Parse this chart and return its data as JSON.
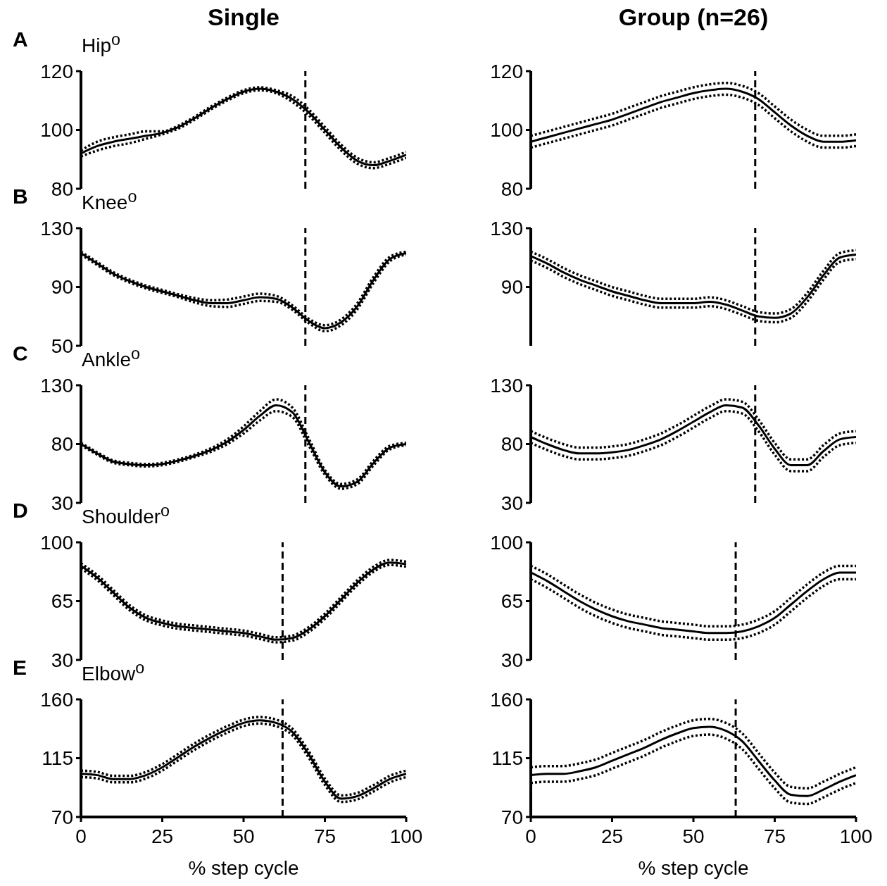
{
  "chart_data": [
    {
      "type": "line",
      "title": "Single",
      "annotations": [
        "A"
      ],
      "ylabel": "Hip$^{o}$",
      "x": [
        0,
        5,
        10,
        15,
        20,
        25,
        30,
        35,
        40,
        45,
        50,
        55,
        60,
        65,
        70,
        75,
        80,
        85,
        90,
        95,
        100
      ],
      "xlim": [
        0,
        100
      ],
      "ylim": [
        80,
        120
      ],
      "yticks": [
        80,
        100,
        120
      ],
      "tick_labels": "y",
      "ref_lines": [
        {
          "axis": "x",
          "value": 69,
          "line_style": "dashed"
        }
      ],
      "series": [
        {
          "color": "#000000",
          "line_style": "solid",
          "values": [
            92,
            94.5,
            96,
            97,
            98,
            99,
            101,
            104,
            107.5,
            110.5,
            113,
            114,
            113,
            110.5,
            106,
            100,
            94,
            89.5,
            88,
            89.5,
            91.5
          ]
        },
        {
          "color": "#000000",
          "line_style": "dotted",
          "values": [
            91,
            93,
            94.5,
            95.5,
            97,
            98.5,
            100.5,
            103.5,
            107,
            110,
            112.5,
            113.5,
            112.5,
            109.5,
            105,
            99,
            93,
            88.5,
            87,
            88.5,
            90.5
          ]
        },
        {
          "color": "#000000",
          "line_style": "dotted",
          "values": [
            93,
            96,
            97.5,
            98.5,
            99.5,
            99.5,
            101.5,
            104.5,
            108,
            111,
            113.5,
            114.5,
            113.5,
            111.5,
            107,
            101,
            95,
            90.5,
            89,
            90.5,
            92.5
          ]
        }
      ]
    },
    {
      "type": "line",
      "title": "Group (n=26)",
      "x": [
        0,
        5,
        10,
        15,
        20,
        25,
        30,
        35,
        40,
        45,
        50,
        55,
        60,
        65,
        70,
        75,
        80,
        85,
        90,
        95,
        100
      ],
      "xlim": [
        0,
        100
      ],
      "ylim": [
        80,
        120
      ],
      "yticks": [
        80,
        100,
        120
      ],
      "tick_labels": "y",
      "ref_lines": [
        {
          "axis": "x",
          "value": 69,
          "line_style": "dashed"
        }
      ],
      "series": [
        {
          "color": "#000000",
          "line_style": "solid",
          "values": [
            96,
            97.5,
            99,
            100.5,
            102,
            103.5,
            105.5,
            107.5,
            109.5,
            111,
            112.5,
            113.5,
            114,
            113,
            110.5,
            106,
            101.5,
            98,
            96,
            96,
            96.5
          ]
        },
        {
          "color": "#000000",
          "line_style": "dotted",
          "values": [
            94,
            95.5,
            97,
            98.5,
            100,
            101.5,
            103.5,
            105.5,
            107.5,
            109,
            110.5,
            111.5,
            112,
            111,
            108.5,
            104,
            99.5,
            96,
            94,
            94,
            94.5
          ]
        },
        {
          "color": "#000000",
          "line_style": "dotted",
          "values": [
            98,
            99.5,
            101,
            102.5,
            104,
            105.5,
            107.5,
            109.5,
            111.5,
            113,
            114.5,
            115.5,
            116,
            115,
            112.5,
            108,
            103.5,
            100,
            98,
            98,
            98.5
          ]
        }
      ]
    },
    {
      "type": "line",
      "annotations": [
        "B"
      ],
      "ylabel": "Knee$^{o}$",
      "x": [
        0,
        5,
        10,
        15,
        20,
        25,
        30,
        35,
        40,
        45,
        50,
        55,
        60,
        65,
        70,
        75,
        80,
        85,
        90,
        95,
        100
      ],
      "xlim": [
        0,
        100
      ],
      "ylim": [
        50,
        130
      ],
      "yticks": [
        50,
        90,
        130
      ],
      "tick_labels": "y",
      "ref_lines": [
        {
          "axis": "x",
          "value": 69,
          "line_style": "dashed"
        }
      ],
      "series": [
        {
          "color": "#000000",
          "line_style": "solid",
          "values": [
            113,
            106,
            99,
            94,
            90,
            87,
            84,
            81,
            79,
            79,
            81,
            83,
            82,
            76,
            67,
            62,
            66,
            77,
            95,
            109,
            113
          ]
        },
        {
          "color": "#000000",
          "line_style": "dotted",
          "values": [
            112,
            105,
            98,
            93,
            89,
            86,
            83,
            79.5,
            77,
            76.5,
            78.5,
            80.5,
            80,
            74.5,
            65.5,
            60,
            64,
            75,
            93,
            107.5,
            112
          ]
        },
        {
          "color": "#000000",
          "line_style": "dotted",
          "values": [
            114,
            107,
            100,
            95,
            91,
            88,
            85,
            82.5,
            81,
            81.5,
            83.5,
            85.5,
            84,
            77.5,
            68.5,
            64,
            68,
            79,
            97,
            110.5,
            114
          ]
        }
      ]
    },
    {
      "type": "line",
      "x": [
        0,
        5,
        10,
        15,
        20,
        25,
        30,
        35,
        40,
        45,
        50,
        55,
        60,
        65,
        70,
        75,
        80,
        85,
        90,
        95,
        100
      ],
      "xlim": [
        0,
        100
      ],
      "ylim": [
        50,
        130
      ],
      "yticks": [
        90,
        130
      ],
      "tick_labels": "y",
      "ref_lines": [
        {
          "axis": "x",
          "value": 69,
          "line_style": "dashed"
        }
      ],
      "series": [
        {
          "color": "#000000",
          "line_style": "solid",
          "values": [
            111,
            106,
            100,
            95,
            91,
            87,
            84,
            81,
            79,
            79,
            79,
            80,
            78,
            74,
            70,
            69,
            72,
            83,
            98,
            110,
            112
          ]
        },
        {
          "color": "#000000",
          "line_style": "dotted",
          "values": [
            108,
            103,
            97,
            92,
            88,
            84,
            81,
            78,
            76,
            76,
            76,
            77,
            75,
            71,
            67,
            66,
            69,
            80,
            95,
            107,
            109
          ]
        },
        {
          "color": "#000000",
          "line_style": "dotted",
          "values": [
            114,
            109,
            103,
            98,
            94,
            90,
            87,
            84,
            82,
            82,
            82,
            83,
            81,
            77,
            73,
            72,
            75,
            86,
            101,
            113,
            115
          ]
        }
      ]
    },
    {
      "type": "line",
      "annotations": [
        "C"
      ],
      "ylabel": "Ankle$^{o}$",
      "x": [
        0,
        5,
        10,
        15,
        20,
        25,
        30,
        35,
        40,
        45,
        50,
        55,
        60,
        65,
        70,
        75,
        80,
        85,
        90,
        95,
        100
      ],
      "xlim": [
        0,
        100
      ],
      "ylim": [
        30,
        130
      ],
      "yticks": [
        30,
        80,
        130
      ],
      "tick_labels": "y",
      "ref_lines": [
        {
          "axis": "x",
          "value": 69,
          "line_style": "dashed"
        }
      ],
      "series": [
        {
          "color": "#000000",
          "line_style": "solid",
          "values": [
            80,
            72,
            65,
            63,
            62,
            63,
            66,
            70,
            75,
            82,
            92,
            104,
            113,
            107,
            82,
            56,
            44,
            48,
            64,
            77,
            80
          ]
        },
        {
          "color": "#000000",
          "line_style": "dotted",
          "values": [
            79,
            71,
            64,
            62,
            61,
            62,
            65,
            69,
            73.5,
            80,
            89,
            100,
            108,
            103,
            79,
            54,
            42,
            46,
            62,
            75.5,
            79
          ]
        },
        {
          "color": "#000000",
          "line_style": "dotted",
          "values": [
            81,
            73,
            66,
            64,
            63,
            64,
            67,
            71,
            76.5,
            84,
            95,
            108,
            118,
            111,
            85,
            58,
            46,
            50,
            66,
            78.5,
            81
          ]
        }
      ]
    },
    {
      "type": "line",
      "x": [
        0,
        5,
        10,
        15,
        20,
        25,
        30,
        35,
        40,
        45,
        50,
        55,
        60,
        65,
        70,
        75,
        80,
        85,
        90,
        95,
        100
      ],
      "xlim": [
        0,
        100
      ],
      "ylim": [
        30,
        130
      ],
      "yticks": [
        30,
        80,
        130
      ],
      "tick_labels": "y",
      "ref_lines": [
        {
          "axis": "x",
          "value": 69,
          "line_style": "dashed"
        }
      ],
      "series": [
        {
          "color": "#000000",
          "line_style": "solid",
          "values": [
            86,
            80,
            75,
            72,
            72,
            73,
            75,
            79,
            84,
            91,
            99,
            107,
            113,
            111,
            96,
            76,
            62,
            62,
            74,
            84,
            86
          ]
        },
        {
          "color": "#000000",
          "line_style": "dotted",
          "values": [
            81,
            75,
            70,
            67,
            67,
            68,
            70,
            74,
            79,
            86,
            94,
            102,
            108,
            106,
            91,
            71,
            57,
            57,
            69,
            79,
            81
          ]
        },
        {
          "color": "#000000",
          "line_style": "dotted",
          "values": [
            91,
            85,
            80,
            77,
            77,
            78,
            80,
            84,
            89,
            96,
            104,
            112,
            118,
            116,
            101,
            81,
            67,
            67,
            79,
            89,
            91
          ]
        }
      ]
    },
    {
      "type": "line",
      "annotations": [
        "D"
      ],
      "ylabel": "Shoulder$^{o}$",
      "x": [
        0,
        5,
        10,
        15,
        20,
        25,
        30,
        35,
        40,
        45,
        50,
        55,
        60,
        65,
        70,
        75,
        80,
        85,
        90,
        95,
        100
      ],
      "xlim": [
        0,
        100
      ],
      "ylim": [
        30,
        100
      ],
      "yticks": [
        30,
        65,
        100
      ],
      "tick_labels": "y",
      "ref_lines": [
        {
          "axis": "x",
          "value": 62,
          "line_style": "dashed"
        }
      ],
      "series": [
        {
          "color": "#000000",
          "line_style": "solid",
          "values": [
            86,
            79,
            70,
            61,
            55,
            52,
            50,
            49,
            48,
            47,
            46,
            44,
            42,
            43,
            48,
            56,
            66,
            76,
            84,
            88,
            87
          ]
        },
        {
          "color": "#000000",
          "line_style": "dotted",
          "values": [
            84.5,
            77.5,
            68.5,
            59.5,
            53.5,
            50.5,
            48.5,
            47.5,
            46.5,
            45.5,
            44.5,
            42.5,
            40.5,
            41.5,
            46.5,
            54.5,
            64.5,
            74.5,
            82.5,
            86.5,
            85.5
          ]
        },
        {
          "color": "#000000",
          "line_style": "dotted",
          "values": [
            87.5,
            80.5,
            71.5,
            62.5,
            56.5,
            53.5,
            51.5,
            50.5,
            49.5,
            48.5,
            47.5,
            45.5,
            43.5,
            44.5,
            49.5,
            57.5,
            67.5,
            77.5,
            85.5,
            89.5,
            88.5
          ]
        }
      ]
    },
    {
      "type": "line",
      "x": [
        0,
        5,
        10,
        15,
        20,
        25,
        30,
        35,
        40,
        45,
        50,
        55,
        60,
        65,
        70,
        75,
        80,
        85,
        90,
        95,
        100
      ],
      "xlim": [
        0,
        100
      ],
      "ylim": [
        30,
        100
      ],
      "yticks": [
        30,
        65,
        100
      ],
      "tick_labels": "y",
      "ref_lines": [
        {
          "axis": "x",
          "value": 63,
          "line_style": "dashed"
        }
      ],
      "series": [
        {
          "color": "#000000",
          "line_style": "solid",
          "values": [
            82,
            77,
            71,
            65,
            60,
            56,
            53,
            51,
            49,
            48,
            47,
            46,
            46,
            47,
            50,
            55,
            63,
            71,
            78,
            82,
            82
          ]
        },
        {
          "color": "#000000",
          "line_style": "dotted",
          "values": [
            78,
            73,
            67,
            61,
            56,
            52,
            49,
            47,
            45,
            44,
            43,
            42,
            42,
            43,
            46,
            51,
            59,
            67,
            74,
            78,
            78
          ]
        },
        {
          "color": "#000000",
          "line_style": "dotted",
          "values": [
            86,
            81,
            75,
            69,
            64,
            60,
            57,
            55,
            53,
            52,
            51,
            50,
            50,
            51,
            54,
            59,
            67,
            75,
            82,
            86,
            86
          ]
        }
      ]
    },
    {
      "type": "line",
      "annotations": [
        "E"
      ],
      "ylabel": "Elbow$^{o}$",
      "xlabel": "% step cycle",
      "x": [
        0,
        5,
        10,
        15,
        20,
        25,
        30,
        35,
        40,
        45,
        50,
        55,
        60,
        65,
        70,
        75,
        80,
        85,
        90,
        95,
        100
      ],
      "xlim": [
        0,
        100
      ],
      "xticks": [
        0,
        25,
        50,
        75,
        100
      ],
      "ylim": [
        70,
        160
      ],
      "yticks": [
        70,
        115,
        160
      ],
      "ref_lines": [
        {
          "axis": "x",
          "value": 62,
          "line_style": "dashed"
        }
      ],
      "series": [
        {
          "color": "#000000",
          "line_style": "solid",
          "values": [
            103,
            102,
            99,
            99,
            102,
            108,
            116,
            124,
            131,
            137,
            142,
            144,
            142,
            135,
            118,
            97,
            84,
            86,
            92,
            99,
            103
          ]
        },
        {
          "color": "#000000",
          "line_style": "dotted",
          "values": [
            100.5,
            99.5,
            96.5,
            96.5,
            99.5,
            105.5,
            113.5,
            121.5,
            128.5,
            134.5,
            139.5,
            141.5,
            139.5,
            132.5,
            115.5,
            94.5,
            81.5,
            83.5,
            89.5,
            96.5,
            100.5
          ]
        },
        {
          "color": "#000000",
          "line_style": "dotted",
          "values": [
            105.5,
            104.5,
            101.5,
            101.5,
            104.5,
            110.5,
            118.5,
            126.5,
            133.5,
            139.5,
            144.5,
            146.5,
            144.5,
            137.5,
            120.5,
            99.5,
            86.5,
            88.5,
            94.5,
            101.5,
            105.5
          ]
        }
      ]
    },
    {
      "type": "line",
      "xlabel": "% step cycle",
      "x": [
        0,
        5,
        10,
        15,
        20,
        25,
        30,
        35,
        40,
        45,
        50,
        55,
        60,
        65,
        70,
        75,
        80,
        85,
        90,
        95,
        100
      ],
      "xlim": [
        0,
        100
      ],
      "xticks": [
        0,
        25,
        50,
        75,
        100
      ],
      "ylim": [
        70,
        160
      ],
      "yticks": [
        70,
        115,
        160
      ],
      "ref_lines": [
        {
          "axis": "x",
          "value": 63,
          "line_style": "dashed"
        }
      ],
      "series": [
        {
          "color": "#000000",
          "line_style": "solid",
          "values": [
            102,
            103,
            103,
            105,
            108,
            113,
            118,
            123,
            129,
            134,
            138,
            139,
            136,
            128,
            113,
            98,
            87,
            86,
            91,
            97,
            102
          ]
        },
        {
          "color": "#000000",
          "line_style": "dotted",
          "values": [
            96,
            97,
            97,
            99,
            102,
            107,
            112,
            117,
            123,
            128,
            132,
            133,
            130,
            122,
            107,
            92,
            81,
            80,
            85,
            91,
            96
          ]
        },
        {
          "color": "#000000",
          "line_style": "dotted",
          "values": [
            108,
            109,
            109,
            111,
            114,
            119,
            124,
            129,
            135,
            140,
            144,
            145,
            142,
            134,
            119,
            104,
            93,
            92,
            97,
            103,
            108
          ]
        }
      ]
    }
  ]
}
